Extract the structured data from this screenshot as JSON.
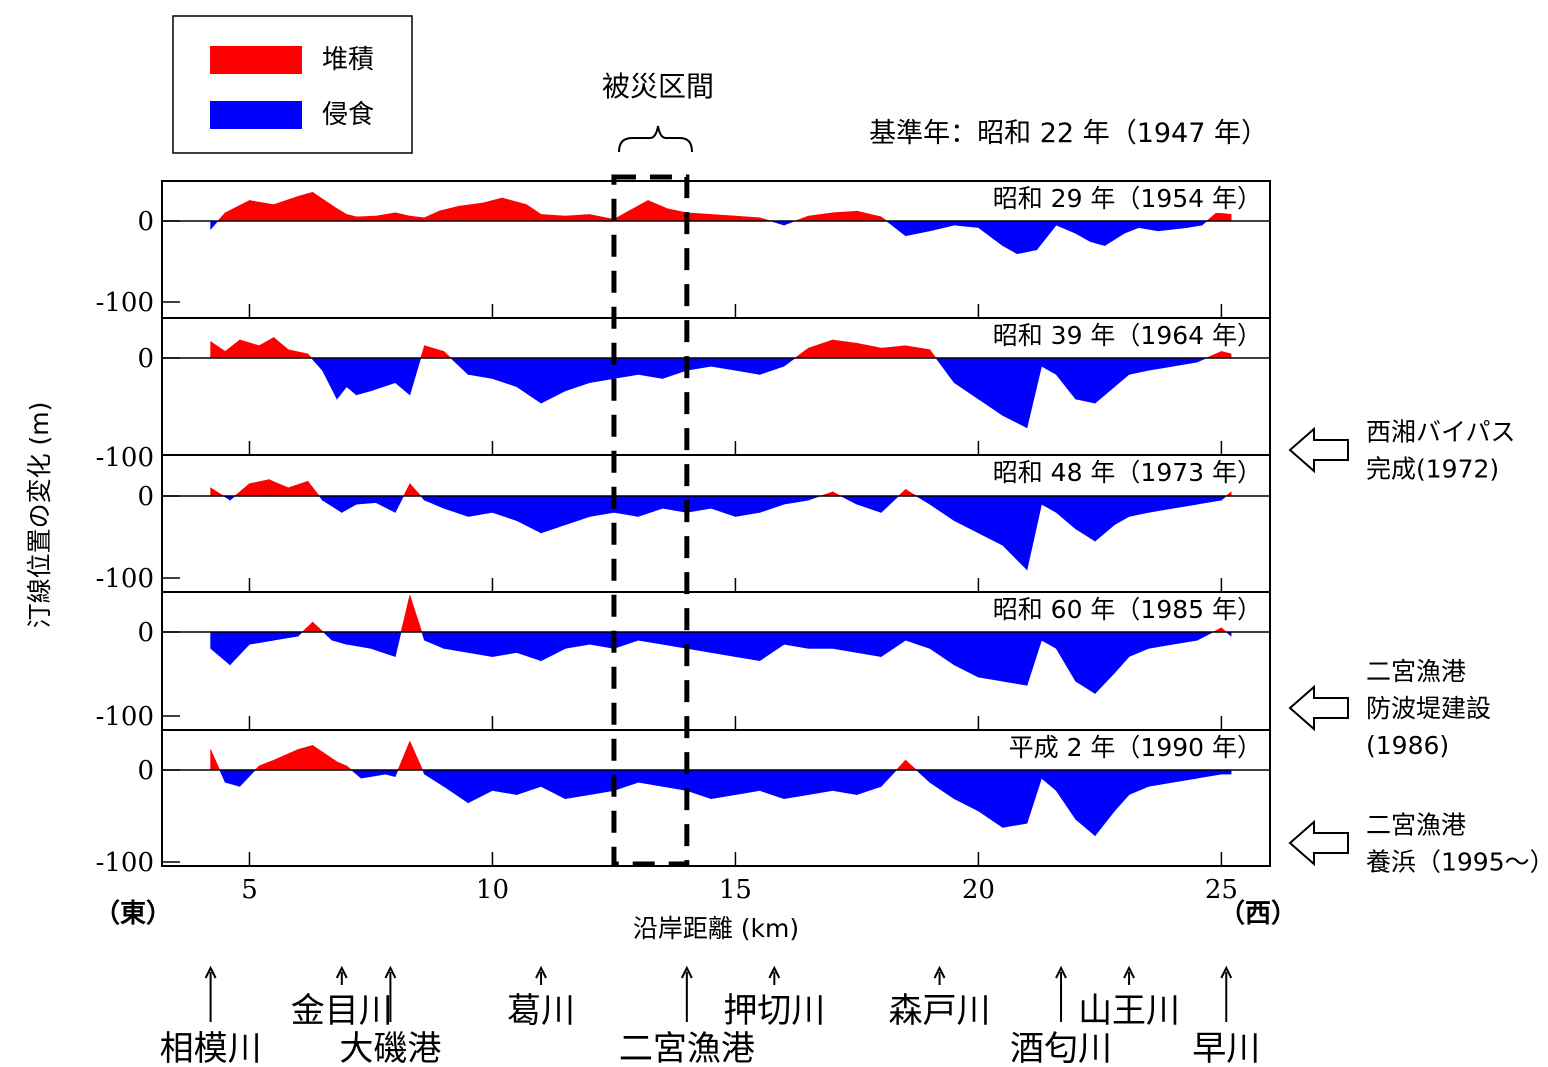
{
  "legend": {
    "items": [
      {
        "label": "堆積",
        "color": "#ff0000"
      },
      {
        "label": "侵食",
        "color": "#0000ff"
      }
    ]
  },
  "annotations": {
    "damaged_section": "被災区間",
    "base_year": "基準年：昭和 22 年（1947 年）",
    "east": "（東）",
    "west": "（西）",
    "events": [
      {
        "lines": [
          "西湘バイパス",
          "完成(1972)"
        ],
        "icon": "left-arrow-icon"
      },
      {
        "lines": [
          "二宮漁港",
          "防波堤建設",
          "(1986)"
        ],
        "icon": "left-arrow-icon"
      },
      {
        "lines": [
          "二宮漁港",
          "養浜（1995～）"
        ],
        "icon": "left-arrow-icon"
      }
    ],
    "landmarks": [
      {
        "name": "相模川",
        "x": 4.2,
        "row": 2
      },
      {
        "name": "金目川",
        "x": 6.9,
        "row": 1
      },
      {
        "name": "大磯港",
        "x": 7.9,
        "row": 2
      },
      {
        "name": "葛川",
        "x": 11.0,
        "row": 1
      },
      {
        "name": "二宮漁港",
        "x": 14.0,
        "row": 2
      },
      {
        "name": "押切川",
        "x": 15.8,
        "row": 1
      },
      {
        "name": "森戸川",
        "x": 19.2,
        "row": 1
      },
      {
        "name": "酒匂川",
        "x": 21.7,
        "row": 2
      },
      {
        "name": "山王川",
        "x": 23.1,
        "row": 1
      },
      {
        "name": "早川",
        "x": 25.1,
        "row": 2
      }
    ]
  },
  "chart_data": {
    "type": "area",
    "title": "",
    "xlabel": "沿岸距離 (km)",
    "ylabel": "汀線位置の変化 (m)",
    "xlim": [
      3.2,
      26.0
    ],
    "ylim": [
      -100,
      50
    ],
    "xticks": [
      5,
      10,
      15,
      20,
      25
    ],
    "yticks": [
      0,
      -100
    ],
    "damaged_section_km": [
      12.5,
      14.0
    ],
    "colors": {
      "positive": "#ff0000",
      "negative": "#0000ff"
    },
    "panels": [
      {
        "name": "昭和 29 年（1954 年）",
        "x": [
          4.2,
          4.5,
          5.0,
          5.5,
          6.0,
          6.3,
          6.8,
          7.0,
          7.2,
          7.6,
          8.0,
          8.3,
          8.6,
          8.9,
          9.3,
          9.8,
          10.2,
          10.7,
          11.0,
          11.5,
          12.0,
          12.5,
          12.8,
          13.2,
          13.6,
          14.0,
          14.5,
          15.0,
          15.5,
          16.0,
          16.5,
          17.0,
          17.5,
          18.0,
          18.5,
          19.0,
          19.5,
          20.0,
          20.5,
          20.8,
          21.2,
          21.6,
          22.0,
          22.3,
          22.6,
          23.0,
          23.3,
          23.7,
          24.0,
          24.3,
          24.6,
          24.9,
          25.2
        ],
        "values": [
          -10,
          10,
          25,
          20,
          30,
          35,
          15,
          8,
          5,
          6,
          10,
          6,
          4,
          12,
          18,
          22,
          28,
          20,
          8,
          6,
          8,
          2,
          12,
          25,
          15,
          10,
          8,
          6,
          4,
          -5,
          6,
          10,
          12,
          5,
          -18,
          -12,
          -5,
          -8,
          -30,
          -40,
          -35,
          -5,
          -15,
          -25,
          -30,
          -15,
          -8,
          -12,
          -10,
          -8,
          -5,
          10,
          8
        ]
      },
      {
        "name": "昭和 39 年（1964 年）",
        "x": [
          4.2,
          4.5,
          4.8,
          5.2,
          5.5,
          5.8,
          6.2,
          6.5,
          6.8,
          7.0,
          7.2,
          7.5,
          8.0,
          8.3,
          8.6,
          9.0,
          9.5,
          10.0,
          10.5,
          11.0,
          11.5,
          12.0,
          12.5,
          13.0,
          13.5,
          14.0,
          14.5,
          15.0,
          15.5,
          16.0,
          16.5,
          17.0,
          17.5,
          18.0,
          18.5,
          19.0,
          19.5,
          20.0,
          20.5,
          21.0,
          21.3,
          21.6,
          22.0,
          22.4,
          22.8,
          23.1,
          23.5,
          24.0,
          24.5,
          25.0,
          25.2
        ],
        "values": [
          20,
          8,
          22,
          15,
          25,
          10,
          5,
          -15,
          -50,
          -35,
          -45,
          -40,
          -30,
          -45,
          15,
          8,
          -20,
          -25,
          -35,
          -55,
          -40,
          -30,
          -25,
          -20,
          -25,
          -15,
          -10,
          -15,
          -20,
          -10,
          12,
          22,
          18,
          12,
          15,
          10,
          -30,
          -50,
          -70,
          -85,
          -10,
          -20,
          -50,
          -55,
          -35,
          -20,
          -15,
          -10,
          -5,
          8,
          5
        ]
      },
      {
        "name": "昭和 48 年（1973 年）",
        "x": [
          4.2,
          4.6,
          5.0,
          5.4,
          5.8,
          6.2,
          6.5,
          6.9,
          7.2,
          7.6,
          8.0,
          8.3,
          8.6,
          9.0,
          9.5,
          10.0,
          10.5,
          11.0,
          11.5,
          12.0,
          12.5,
          13.0,
          13.5,
          14.0,
          14.5,
          15.0,
          15.5,
          16.0,
          16.5,
          17.0,
          17.5,
          18.0,
          18.5,
          19.0,
          19.5,
          20.0,
          20.5,
          21.0,
          21.3,
          21.6,
          22.0,
          22.4,
          22.8,
          23.1,
          23.5,
          24.0,
          24.5,
          25.0,
          25.2
        ],
        "values": [
          10,
          -5,
          15,
          20,
          10,
          18,
          -5,
          -20,
          -10,
          -8,
          -20,
          15,
          -5,
          -15,
          -25,
          -20,
          -30,
          -45,
          -35,
          -25,
          -20,
          -25,
          -15,
          -20,
          -15,
          -25,
          -20,
          -10,
          -5,
          5,
          -10,
          -20,
          8,
          -10,
          -30,
          -45,
          -60,
          -90,
          -10,
          -20,
          -40,
          -55,
          -35,
          -25,
          -20,
          -15,
          -10,
          -5,
          5
        ]
      },
      {
        "name": "昭和 60 年（1985 年）",
        "x": [
          4.2,
          4.6,
          5.0,
          5.5,
          6.0,
          6.3,
          6.7,
          7.0,
          7.5,
          8.0,
          8.3,
          8.6,
          9.0,
          9.5,
          10.0,
          10.5,
          11.0,
          11.5,
          12.0,
          12.5,
          13.0,
          13.5,
          14.0,
          14.5,
          15.0,
          15.5,
          16.0,
          16.5,
          17.0,
          17.5,
          18.0,
          18.5,
          19.0,
          19.5,
          20.0,
          20.5,
          21.0,
          21.3,
          21.6,
          22.0,
          22.4,
          22.8,
          23.1,
          23.5,
          24.0,
          24.5,
          25.0,
          25.2
        ],
        "values": [
          -20,
          -40,
          -15,
          -10,
          -5,
          12,
          -10,
          -15,
          -20,
          -30,
          45,
          -10,
          -20,
          -25,
          -30,
          -25,
          -35,
          -20,
          -15,
          -20,
          -10,
          -15,
          -20,
          -25,
          -30,
          -35,
          -15,
          -20,
          -20,
          -25,
          -30,
          -10,
          -20,
          -40,
          -55,
          -60,
          -65,
          -10,
          -20,
          -60,
          -75,
          -50,
          -30,
          -20,
          -15,
          -10,
          5,
          -5
        ]
      },
      {
        "name": "平成 2 年（1990 年）",
        "x": [
          4.2,
          4.5,
          4.8,
          5.2,
          5.5,
          6.0,
          6.3,
          6.8,
          7.0,
          7.3,
          7.8,
          8.0,
          8.3,
          8.6,
          9.0,
          9.5,
          10.0,
          10.5,
          11.0,
          11.5,
          12.0,
          12.5,
          13.0,
          13.5,
          14.0,
          14.5,
          15.0,
          15.5,
          16.0,
          16.5,
          17.0,
          17.5,
          18.0,
          18.5,
          19.0,
          19.5,
          20.0,
          20.5,
          21.0,
          21.3,
          21.6,
          22.0,
          22.4,
          22.8,
          23.1,
          23.5,
          24.0,
          24.5,
          25.0,
          25.2
        ],
        "values": [
          25,
          -15,
          -20,
          5,
          12,
          25,
          30,
          10,
          5,
          -10,
          -5,
          -8,
          35,
          -5,
          -20,
          -40,
          -25,
          -30,
          -20,
          -35,
          -30,
          -25,
          -15,
          -20,
          -25,
          -35,
          -30,
          -25,
          -35,
          -30,
          -25,
          -30,
          -20,
          12,
          -15,
          -35,
          -50,
          -70,
          -65,
          -10,
          -25,
          -60,
          -80,
          -50,
          -30,
          -20,
          -15,
          -10,
          -5,
          -5
        ]
      }
    ]
  }
}
